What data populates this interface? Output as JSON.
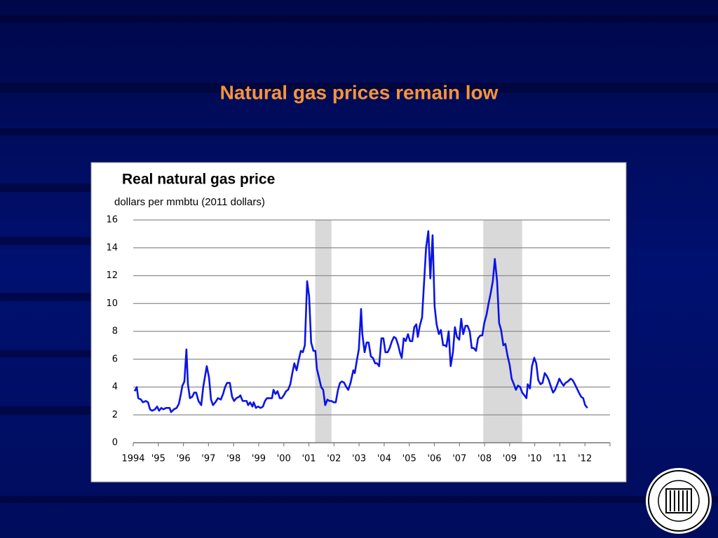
{
  "slide_title": "Natural gas prices remain low",
  "chart_data": {
    "type": "line",
    "title": "Real natural gas price",
    "subtitle": "dollars per mmbtu (2011 dollars)",
    "x": [
      1994.06,
      1994.14,
      1994.2,
      1994.31,
      1994.39,
      1994.5,
      1994.59,
      1994.67,
      1994.75,
      1994.87,
      1994.95,
      1995.03,
      1995.12,
      1995.2,
      1995.31,
      1995.45,
      1995.51,
      1995.62,
      1995.73,
      1995.82,
      1995.9,
      1995.96,
      1996.04,
      1996.12,
      1996.18,
      1996.26,
      1996.35,
      1996.43,
      1996.51,
      1996.6,
      1996.71,
      1996.79,
      1996.93,
      1997.02,
      1997.1,
      1997.18,
      1997.27,
      1997.38,
      1997.49,
      1997.58,
      1997.66,
      1997.74,
      1997.85,
      1997.94,
      1998.02,
      1998.11,
      1998.22,
      1998.27,
      1998.36,
      1998.44,
      1998.52,
      1998.58,
      1998.66,
      1998.75,
      1998.8,
      1998.89,
      1998.97,
      1999.08,
      1999.17,
      1999.25,
      1999.33,
      1999.45,
      1999.53,
      1999.59,
      1999.67,
      1999.75,
      1999.84,
      1999.92,
      2000,
      2000.09,
      2000.17,
      2000.26,
      2000.34,
      2000.42,
      2000.51,
      2000.59,
      2000.68,
      2000.76,
      2000.84,
      2000.93,
      2001.01,
      2001.09,
      2001.18,
      2001.26,
      2001.32,
      2001.4,
      2001.49,
      2001.57,
      2001.65,
      2001.74,
      2001.82,
      2001.9,
      2001.99,
      2002.07,
      2002.16,
      2002.24,
      2002.32,
      2002.41,
      2002.49,
      2002.57,
      2002.66,
      2002.77,
      2002.83,
      2002.91,
      2002.99,
      2003.08,
      2003.13,
      2003.22,
      2003.3,
      2003.38,
      2003.47,
      2003.55,
      2003.64,
      2003.72,
      2003.8,
      2003.89,
      2003.97,
      2004.05,
      2004.14,
      2004.22,
      2004.31,
      2004.39,
      2004.47,
      2004.56,
      2004.64,
      2004.7,
      2004.78,
      2004.86,
      2004.95,
      2005.03,
      2005.12,
      2005.2,
      2005.28,
      2005.34,
      2005.42,
      2005.51,
      2005.59,
      2005.67,
      2005.76,
      2005.84,
      2005.93,
      2006.01,
      2006.09,
      2006.18,
      2006.26,
      2006.35,
      2006.43,
      2006.48,
      2006.57,
      2006.65,
      2006.74,
      2006.82,
      2006.9,
      2006.99,
      2007.07,
      2007.15,
      2007.24,
      2007.32,
      2007.41,
      2007.49,
      2007.57,
      2007.66,
      2007.74,
      2007.83,
      2007.91,
      2007.99,
      2008.08,
      2008.16,
      2008.24,
      2008.33,
      2008.41,
      2008.5,
      2008.58,
      2008.66,
      2008.75,
      2008.83,
      2008.91,
      2009,
      2009.08,
      2009.17,
      2009.25,
      2009.33,
      2009.42,
      2009.5,
      2009.59,
      2009.67,
      2009.72,
      2009.81,
      2009.89,
      2009.98,
      2010.06,
      2010.14,
      2010.23,
      2010.31,
      2010.4,
      2010.48,
      2010.56,
      2010.65,
      2010.73,
      2010.81,
      2010.9,
      2010.98,
      2011.07,
      2011.15,
      2011.23,
      2011.32,
      2011.43,
      2011.51,
      2011.6,
      2011.68,
      2011.76,
      2011.85,
      2011.93,
      2012.01,
      2012.1
    ],
    "series": [
      {
        "color": "#0a14e6",
        "values": [
          3.7,
          4.0,
          3.2,
          3.1,
          2.9,
          3.0,
          2.9,
          2.4,
          2.3,
          2.4,
          2.6,
          2.3,
          2.5,
          2.4,
          2.5,
          2.5,
          2.2,
          2.4,
          2.5,
          2.8,
          3.5,
          4.1,
          4.4,
          6.7,
          4.2,
          3.2,
          3.3,
          3.6,
          3.6,
          3.0,
          2.7,
          4.0,
          5.5,
          4.7,
          3.1,
          2.7,
          2.9,
          3.2,
          3.1,
          3.5,
          4.0,
          4.3,
          4.3,
          3.3,
          3.0,
          3.2,
          3.3,
          3.4,
          3.0,
          3.0,
          3.0,
          2.7,
          2.9,
          2.6,
          2.9,
          2.5,
          2.6,
          2.5,
          2.6,
          3.0,
          3.2,
          3.2,
          3.2,
          3.8,
          3.5,
          3.7,
          3.2,
          3.2,
          3.4,
          3.7,
          3.8,
          4.2,
          5.0,
          5.7,
          5.2,
          5.9,
          6.6,
          6.5,
          7.0,
          11.6,
          10.5,
          7.2,
          6.6,
          6.6,
          5.3,
          4.7,
          4.0,
          3.8,
          2.7,
          3.1,
          3.0,
          3.0,
          2.9,
          2.9,
          3.8,
          4.3,
          4.4,
          4.3,
          4.0,
          3.8,
          4.3,
          5.2,
          5.0,
          5.9,
          6.7,
          9.6,
          7.8,
          6.5,
          7.2,
          7.2,
          6.2,
          6.1,
          5.7,
          5.7,
          5.5,
          7.5,
          7.5,
          6.5,
          6.5,
          6.8,
          7.3,
          7.6,
          7.5,
          7.0,
          6.4,
          6.1,
          7.5,
          7.3,
          7.8,
          7.3,
          7.3,
          8.3,
          8.5,
          7.6,
          8.4,
          9.0,
          11.5,
          14.0,
          15.2,
          11.8,
          14.9,
          9.8,
          8.5,
          7.8,
          8.1,
          7.0,
          7.0,
          6.9,
          8.0,
          5.5,
          6.5,
          8.3,
          7.6,
          7.4,
          8.9,
          7.8,
          8.4,
          8.4,
          8.0,
          6.8,
          6.8,
          6.6,
          7.5,
          7.7,
          7.7,
          8.6,
          9.2,
          10.0,
          10.7,
          11.6,
          13.2,
          11.6,
          8.6,
          8.1,
          7.0,
          7.1,
          6.3,
          5.6,
          4.6,
          4.2,
          3.8,
          4.1,
          4.0,
          3.6,
          3.4,
          3.2,
          4.2,
          3.9,
          5.5,
          6.1,
          5.7,
          4.5,
          4.2,
          4.3,
          5.0,
          4.8,
          4.5,
          4.0,
          3.6,
          3.8,
          4.2,
          4.6,
          4.3,
          4.1,
          4.3,
          4.4,
          4.6,
          4.5,
          4.2,
          3.9,
          3.6,
          3.3,
          3.2,
          2.7,
          2.5
        ]
      }
    ],
    "recessions": [
      [
        2001.25,
        2001.9
      ],
      [
        2007.95,
        2009.5
      ]
    ],
    "recession_color": "#d9d9d9",
    "xlim": [
      1994,
      2013
    ],
    "xticks": [
      {
        "value": 1994,
        "label": "1994"
      },
      {
        "value": 1995,
        "label": "'95"
      },
      {
        "value": 1996,
        "label": "'96"
      },
      {
        "value": 1997,
        "label": "'97"
      },
      {
        "value": 1998,
        "label": "'98"
      },
      {
        "value": 1999,
        "label": "'99"
      },
      {
        "value": 2000,
        "label": "'00"
      },
      {
        "value": 2001,
        "label": "'01"
      },
      {
        "value": 2002,
        "label": "'02"
      },
      {
        "value": 2003,
        "label": "'03"
      },
      {
        "value": 2004,
        "label": "'04"
      },
      {
        "value": 2005,
        "label": "'05"
      },
      {
        "value": 2006,
        "label": "'06"
      },
      {
        "value": 2007,
        "label": "'07"
      },
      {
        "value": 2008,
        "label": "'08"
      },
      {
        "value": 2009,
        "label": "'09"
      },
      {
        "value": 2010,
        "label": "'10"
      },
      {
        "value": 2011,
        "label": "'11"
      },
      {
        "value": 2012,
        "label": "'12"
      }
    ],
    "ylim": [
      0,
      16
    ],
    "yticks": [
      0,
      2,
      4,
      6,
      8,
      10,
      12,
      14,
      16
    ],
    "grid": true
  }
}
